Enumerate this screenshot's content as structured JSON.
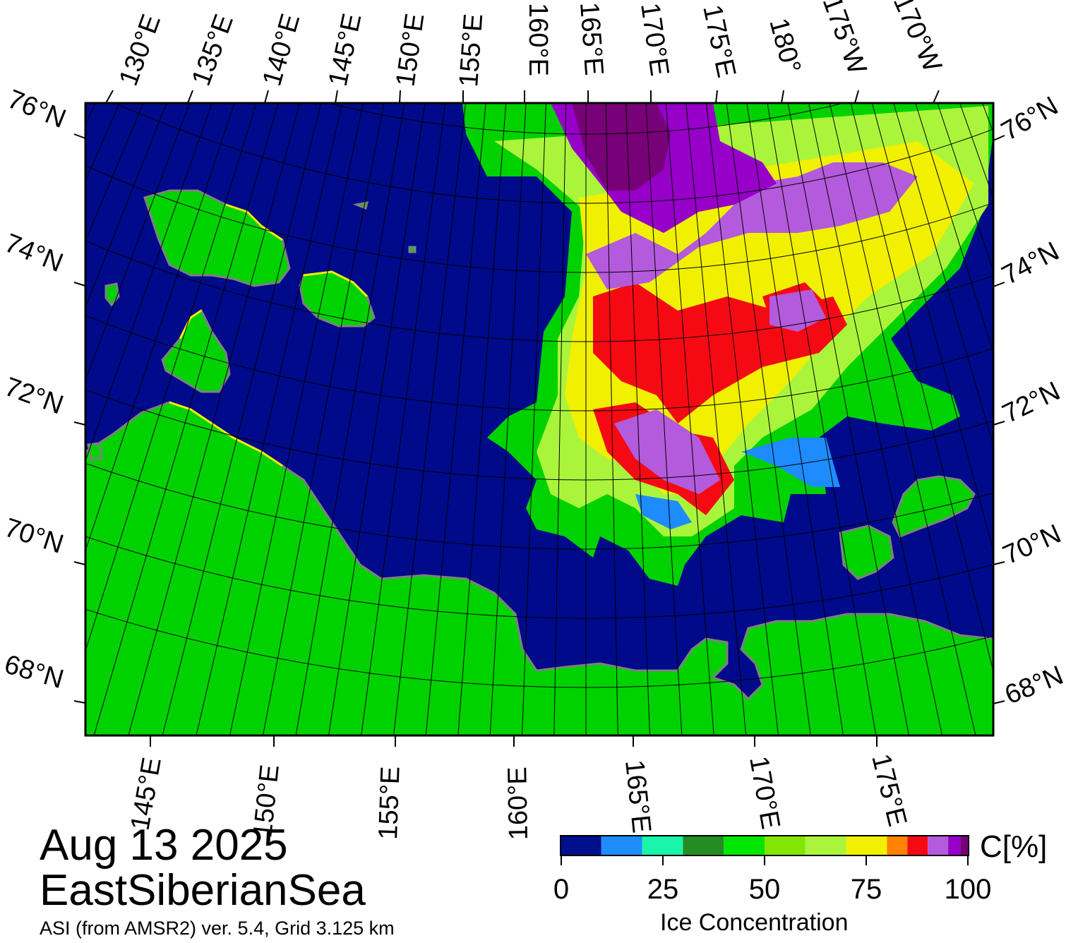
{
  "map": {
    "date": "Aug 13 2025",
    "region": "EastSiberianSea",
    "source": "ASI (from AMSR2) ver. 5.4,  Grid 3.125 km",
    "top_lon_labels": [
      "130°E",
      "135°E",
      "140°E",
      "145°E",
      "150°E",
      "155°E",
      "160°E",
      "165°E",
      "170°E",
      "175°E",
      "180°",
      "175°W",
      "170°W"
    ],
    "bottom_lon_labels": [
      "145°E",
      "150°E",
      "155°E",
      "160°E",
      "165°E",
      "170°E",
      "175°E"
    ],
    "left_lat_labels": [
      "76°N",
      "74°N",
      "72°N",
      "70°N",
      "68°N"
    ],
    "right_lat_labels": [
      "76°N",
      "74°N",
      "72°N",
      "70°N",
      "68°N"
    ],
    "colors": {
      "ocean": "#000a8a",
      "land": "#00d200",
      "coast": "#808080",
      "frame": "#000000",
      "grid": "#000000"
    }
  },
  "legend": {
    "title": "Ice Concentration",
    "unit": "C[%]",
    "ticks": [
      "0",
      "25",
      "50",
      "75",
      "100"
    ],
    "colors": [
      "#000f8c",
      "#1e8cff",
      "#19f5aa",
      "#238c23",
      "#00e600",
      "#82e600",
      "#aaf53c",
      "#f0f000",
      "#ff8200",
      "#f50a14",
      "#b45adc",
      "#9600c8",
      "#780078"
    ]
  }
}
